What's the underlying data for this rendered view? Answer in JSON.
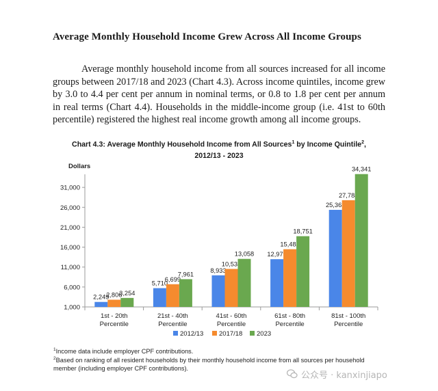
{
  "heading": "Average Monthly Household Income Grew Across All Income Groups",
  "paragraph": "Average monthly household income from all sources increased for all income groups between 2017/18 and 2023 (Chart 4.3). Across income quintiles, income grew by 3.0 to 4.4 per cent per annum in nominal terms, or 0.8 to 1.8 per cent per annum in real terms (Chart 4.4). Households in the middle-income group (i.e. 41st to 60th percentile) registered the highest real income growth among all income groups.",
  "chart_title": {
    "line1_a": "Chart 4.3: Average Monthly Household Income from All Sources",
    "line1_sup1": "1",
    "line1_b": " by Income Quintile",
    "line1_sup2": "2",
    "line1_c": ",",
    "line2": "2012/13 - 2023"
  },
  "chart_data": {
    "type": "bar",
    "ylabel": "Dollars",
    "ylim": [
      1000,
      36000
    ],
    "yticks": [
      "1,000",
      "6,000",
      "11,000",
      "16,000",
      "21,000",
      "26,000",
      "31,000"
    ],
    "ytick_values": [
      1000,
      6000,
      11000,
      16000,
      21000,
      26000,
      31000
    ],
    "categories": [
      [
        "1st - 20th",
        "Percentile"
      ],
      [
        "21st - 40th",
        "Percentile"
      ],
      [
        "41st - 60th",
        "Percentile"
      ],
      [
        "61st - 80th",
        "Percentile"
      ],
      [
        "81st - 100th",
        "Percentile"
      ]
    ],
    "series": [
      {
        "name": "2012/13",
        "color": "#4a86e8",
        "values": [
          2249,
          5710,
          8933,
          12979,
          25361
        ],
        "labels": [
          "2,249",
          "5,710",
          "8,933",
          "12,979",
          "25,361"
        ]
      },
      {
        "name": "2017/18",
        "color": "#f58b2e",
        "values": [
          2806,
          6699,
          10534,
          15482,
          27784
        ],
        "labels": [
          "2,806",
          "6,699",
          "10,534",
          "15,482",
          "27,784"
        ]
      },
      {
        "name": "2023",
        "color": "#6aa84f",
        "values": [
          3254,
          7961,
          13058,
          18751,
          34341
        ],
        "labels": [
          "3,254",
          "7,961",
          "13,058",
          "18,751",
          "34,341"
        ]
      }
    ],
    "legend_position": "bottom",
    "grid": false
  },
  "footnotes": {
    "fn1_sup": "1",
    "fn1": "Income data include employer CPF contributions.",
    "fn2_sup": "2",
    "fn2_line1": "Based on ranking of all resident households by their monthly household income from all sources per household",
    "fn2_line2": "member (including employer CPF contributions)."
  },
  "watermark": "公众号 · kanxinjiapo"
}
